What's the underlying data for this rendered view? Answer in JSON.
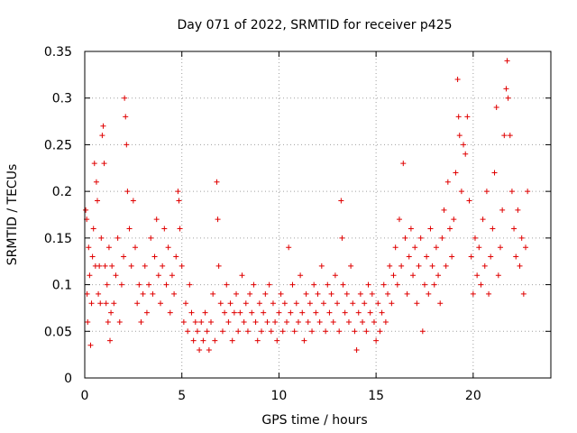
{
  "chart_data": {
    "type": "scatter",
    "title": "Day 071 of 2022, SRMTID for receiver p425",
    "xlabel": "GPS time / hours",
    "ylabel": "SRMTID / TECUs",
    "xlim": [
      0,
      24
    ],
    "ylim": [
      0,
      0.35
    ],
    "x_ticks": [
      0,
      5,
      10,
      15,
      20
    ],
    "x_tick_labels": [
      "0",
      "5",
      "10",
      "15",
      "20"
    ],
    "y_ticks": [
      0,
      0.05,
      0.1,
      0.15,
      0.2,
      0.25,
      0.3,
      0.35
    ],
    "y_tick_labels": [
      "0",
      "0.05",
      "0.1",
      "0.15",
      "0.2",
      "0.25",
      "0.3",
      "0.35"
    ],
    "grid": true,
    "marker": "+",
    "series_color": "#e00000",
    "points": [
      [
        0.05,
        0.18
      ],
      [
        0.1,
        0.17
      ],
      [
        0.12,
        0.09
      ],
      [
        0.15,
        0.06
      ],
      [
        0.2,
        0.14
      ],
      [
        0.25,
        0.11
      ],
      [
        0.3,
        0.035
      ],
      [
        0.35,
        0.08
      ],
      [
        0.4,
        0.13
      ],
      [
        0.45,
        0.16
      ],
      [
        0.5,
        0.23
      ],
      [
        0.55,
        0.12
      ],
      [
        0.6,
        0.21
      ],
      [
        0.65,
        0.19
      ],
      [
        0.7,
        0.09
      ],
      [
        0.75,
        0.12
      ],
      [
        0.8,
        0.08
      ],
      [
        0.85,
        0.15
      ],
      [
        0.9,
        0.26
      ],
      [
        0.95,
        0.27
      ],
      [
        1.0,
        0.23
      ],
      [
        1.05,
        0.12
      ],
      [
        1.1,
        0.08
      ],
      [
        1.15,
        0.1
      ],
      [
        1.2,
        0.06
      ],
      [
        1.25,
        0.14
      ],
      [
        1.3,
        0.04
      ],
      [
        1.35,
        0.07
      ],
      [
        1.4,
        0.12
      ],
      [
        1.5,
        0.08
      ],
      [
        1.6,
        0.11
      ],
      [
        1.7,
        0.15
      ],
      [
        1.8,
        0.06
      ],
      [
        1.9,
        0.1
      ],
      [
        2.0,
        0.13
      ],
      [
        2.05,
        0.3
      ],
      [
        2.1,
        0.28
      ],
      [
        2.15,
        0.25
      ],
      [
        2.2,
        0.2
      ],
      [
        2.3,
        0.16
      ],
      [
        2.4,
        0.12
      ],
      [
        2.5,
        0.19
      ],
      [
        2.6,
        0.14
      ],
      [
        2.7,
        0.08
      ],
      [
        2.8,
        0.1
      ],
      [
        2.9,
        0.06
      ],
      [
        3.0,
        0.09
      ],
      [
        3.1,
        0.12
      ],
      [
        3.2,
        0.07
      ],
      [
        3.3,
        0.1
      ],
      [
        3.4,
        0.15
      ],
      [
        3.5,
        0.09
      ],
      [
        3.6,
        0.13
      ],
      [
        3.7,
        0.17
      ],
      [
        3.8,
        0.11
      ],
      [
        3.9,
        0.08
      ],
      [
        4.0,
        0.12
      ],
      [
        4.1,
        0.16
      ],
      [
        4.2,
        0.1
      ],
      [
        4.3,
        0.14
      ],
      [
        4.4,
        0.07
      ],
      [
        4.5,
        0.11
      ],
      [
        4.6,
        0.09
      ],
      [
        4.7,
        0.13
      ],
      [
        4.8,
        0.2
      ],
      [
        4.85,
        0.19
      ],
      [
        4.9,
        0.16
      ],
      [
        5.0,
        0.12
      ],
      [
        5.1,
        0.06
      ],
      [
        5.2,
        0.08
      ],
      [
        5.3,
        0.05
      ],
      [
        5.4,
        0.1
      ],
      [
        5.5,
        0.07
      ],
      [
        5.6,
        0.04
      ],
      [
        5.7,
        0.06
      ],
      [
        5.8,
        0.05
      ],
      [
        5.9,
        0.03
      ],
      [
        6.0,
        0.06
      ],
      [
        6.1,
        0.04
      ],
      [
        6.2,
        0.07
      ],
      [
        6.3,
        0.05
      ],
      [
        6.4,
        0.03
      ],
      [
        6.5,
        0.06
      ],
      [
        6.6,
        0.09
      ],
      [
        6.7,
        0.04
      ],
      [
        6.8,
        0.21
      ],
      [
        6.85,
        0.17
      ],
      [
        6.9,
        0.12
      ],
      [
        7.0,
        0.08
      ],
      [
        7.1,
        0.05
      ],
      [
        7.2,
        0.07
      ],
      [
        7.3,
        0.1
      ],
      [
        7.4,
        0.06
      ],
      [
        7.5,
        0.08
      ],
      [
        7.6,
        0.04
      ],
      [
        7.7,
        0.07
      ],
      [
        7.8,
        0.09
      ],
      [
        7.9,
        0.05
      ],
      [
        8.0,
        0.07
      ],
      [
        8.1,
        0.11
      ],
      [
        8.2,
        0.06
      ],
      [
        8.3,
        0.08
      ],
      [
        8.4,
        0.05
      ],
      [
        8.5,
        0.09
      ],
      [
        8.6,
        0.07
      ],
      [
        8.7,
        0.1
      ],
      [
        8.8,
        0.06
      ],
      [
        8.9,
        0.04
      ],
      [
        9.0,
        0.08
      ],
      [
        9.1,
        0.05
      ],
      [
        9.2,
        0.07
      ],
      [
        9.3,
        0.09
      ],
      [
        9.4,
        0.06
      ],
      [
        9.5,
        0.1
      ],
      [
        9.6,
        0.05
      ],
      [
        9.7,
        0.08
      ],
      [
        9.8,
        0.06
      ],
      [
        9.9,
        0.04
      ],
      [
        10.0,
        0.07
      ],
      [
        10.1,
        0.09
      ],
      [
        10.2,
        0.05
      ],
      [
        10.3,
        0.08
      ],
      [
        10.4,
        0.06
      ],
      [
        10.5,
        0.14
      ],
      [
        10.6,
        0.07
      ],
      [
        10.7,
        0.1
      ],
      [
        10.8,
        0.05
      ],
      [
        10.9,
        0.08
      ],
      [
        11.0,
        0.06
      ],
      [
        11.1,
        0.11
      ],
      [
        11.2,
        0.07
      ],
      [
        11.3,
        0.04
      ],
      [
        11.4,
        0.09
      ],
      [
        11.5,
        0.06
      ],
      [
        11.6,
        0.08
      ],
      [
        11.7,
        0.05
      ],
      [
        11.8,
        0.1
      ],
      [
        11.9,
        0.07
      ],
      [
        12.0,
        0.09
      ],
      [
        12.1,
        0.06
      ],
      [
        12.2,
        0.12
      ],
      [
        12.3,
        0.08
      ],
      [
        12.4,
        0.05
      ],
      [
        12.5,
        0.1
      ],
      [
        12.6,
        0.07
      ],
      [
        12.7,
        0.09
      ],
      [
        12.8,
        0.06
      ],
      [
        12.9,
        0.11
      ],
      [
        13.0,
        0.08
      ],
      [
        13.1,
        0.05
      ],
      [
        13.2,
        0.19
      ],
      [
        13.25,
        0.15
      ],
      [
        13.3,
        0.1
      ],
      [
        13.4,
        0.07
      ],
      [
        13.5,
        0.09
      ],
      [
        13.6,
        0.06
      ],
      [
        13.7,
        0.12
      ],
      [
        13.8,
        0.08
      ],
      [
        13.9,
        0.05
      ],
      [
        14.0,
        0.03
      ],
      [
        14.1,
        0.07
      ],
      [
        14.2,
        0.09
      ],
      [
        14.3,
        0.06
      ],
      [
        14.4,
        0.08
      ],
      [
        14.5,
        0.05
      ],
      [
        14.6,
        0.1
      ],
      [
        14.7,
        0.07
      ],
      [
        14.8,
        0.09
      ],
      [
        14.9,
        0.06
      ],
      [
        15.0,
        0.04
      ],
      [
        15.1,
        0.08
      ],
      [
        15.2,
        0.05
      ],
      [
        15.3,
        0.07
      ],
      [
        15.4,
        0.1
      ],
      [
        15.5,
        0.06
      ],
      [
        15.6,
        0.09
      ],
      [
        15.7,
        0.12
      ],
      [
        15.8,
        0.08
      ],
      [
        15.9,
        0.11
      ],
      [
        16.0,
        0.14
      ],
      [
        16.1,
        0.1
      ],
      [
        16.2,
        0.17
      ],
      [
        16.3,
        0.12
      ],
      [
        16.4,
        0.23
      ],
      [
        16.5,
        0.15
      ],
      [
        16.6,
        0.09
      ],
      [
        16.7,
        0.13
      ],
      [
        16.8,
        0.16
      ],
      [
        16.9,
        0.11
      ],
      [
        17.0,
        0.14
      ],
      [
        17.1,
        0.08
      ],
      [
        17.2,
        0.12
      ],
      [
        17.3,
        0.15
      ],
      [
        17.4,
        0.05
      ],
      [
        17.5,
        0.1
      ],
      [
        17.6,
        0.13
      ],
      [
        17.7,
        0.09
      ],
      [
        17.8,
        0.16
      ],
      [
        17.9,
        0.12
      ],
      [
        18.0,
        0.1
      ],
      [
        18.1,
        0.14
      ],
      [
        18.2,
        0.11
      ],
      [
        18.3,
        0.08
      ],
      [
        18.4,
        0.15
      ],
      [
        18.5,
        0.18
      ],
      [
        18.6,
        0.12
      ],
      [
        18.7,
        0.21
      ],
      [
        18.8,
        0.16
      ],
      [
        18.9,
        0.13
      ],
      [
        19.0,
        0.17
      ],
      [
        19.1,
        0.22
      ],
      [
        19.2,
        0.32
      ],
      [
        19.25,
        0.28
      ],
      [
        19.3,
        0.26
      ],
      [
        19.4,
        0.2
      ],
      [
        19.5,
        0.25
      ],
      [
        19.6,
        0.24
      ],
      [
        19.7,
        0.28
      ],
      [
        19.8,
        0.19
      ],
      [
        19.9,
        0.13
      ],
      [
        20.0,
        0.09
      ],
      [
        20.1,
        0.15
      ],
      [
        20.2,
        0.11
      ],
      [
        20.3,
        0.14
      ],
      [
        20.4,
        0.1
      ],
      [
        20.5,
        0.17
      ],
      [
        20.6,
        0.12
      ],
      [
        20.7,
        0.2
      ],
      [
        20.8,
        0.09
      ],
      [
        20.9,
        0.13
      ],
      [
        21.0,
        0.16
      ],
      [
        21.1,
        0.22
      ],
      [
        21.2,
        0.29
      ],
      [
        21.3,
        0.11
      ],
      [
        21.4,
        0.14
      ],
      [
        21.5,
        0.18
      ],
      [
        21.6,
        0.26
      ],
      [
        21.7,
        0.31
      ],
      [
        21.75,
        0.34
      ],
      [
        21.8,
        0.3
      ],
      [
        21.9,
        0.26
      ],
      [
        22.0,
        0.2
      ],
      [
        22.1,
        0.16
      ],
      [
        22.2,
        0.13
      ],
      [
        22.3,
        0.18
      ],
      [
        22.4,
        0.12
      ],
      [
        22.5,
        0.15
      ],
      [
        22.6,
        0.09
      ],
      [
        22.7,
        0.14
      ],
      [
        22.8,
        0.2
      ]
    ]
  }
}
